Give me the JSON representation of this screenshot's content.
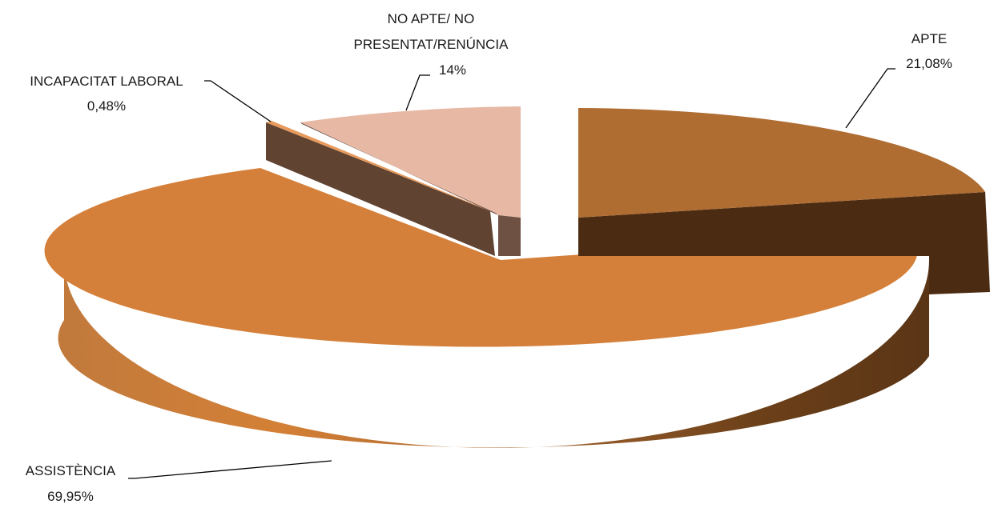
{
  "chart_data": {
    "type": "pie",
    "style": "3d-exploded",
    "series": [
      {
        "slices": [
          {
            "label": "APTE",
            "value_label": "21,08%",
            "value": 21.08,
            "top_color": "#b06d32",
            "side_color": "#4b2c12"
          },
          {
            "label": "ASSISTÈNCIA",
            "value_label": "69,95%",
            "value": 69.95,
            "top_color": "#d5803a",
            "side_color": "#5a3516"
          },
          {
            "label": "INCAPACITAT LABORAL",
            "value_label": "0,48%",
            "value": 0.48,
            "top_color": "#e79a5b",
            "side_color": "#604331"
          },
          {
            "label": "NO APTE/ NO",
            "label_line2": "PRESENTAT/RENÚNCIA",
            "value_label": "14%",
            "value": 14,
            "top_color": "#e7b9a4",
            "side_color": "#6f5144"
          }
        ]
      }
    ],
    "legend": "none",
    "data_labels": "outside with leader lines"
  }
}
